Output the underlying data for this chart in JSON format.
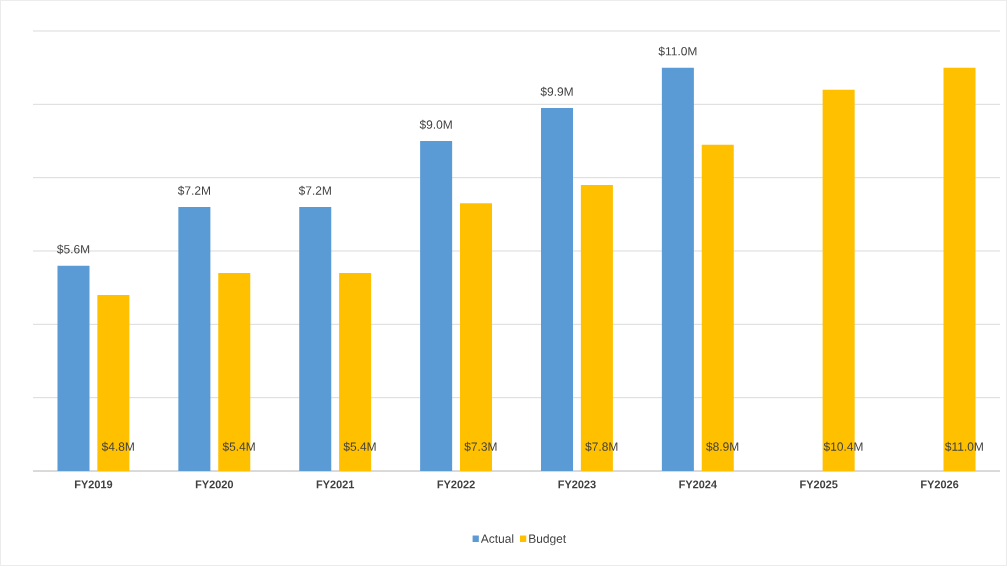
{
  "chart_data": {
    "type": "bar",
    "categories": [
      "FY2019",
      "FY2020",
      "FY2021",
      "FY2022",
      "FY2023",
      "FY2024",
      "FY2025",
      "FY2026"
    ],
    "series": [
      {
        "name": "Actual",
        "color": "#5b9bd5",
        "values": [
          5.6,
          7.2,
          7.2,
          9.0,
          9.9,
          11.0,
          null,
          null
        ],
        "value_labels": [
          "$5.6M",
          "$7.2M",
          "$7.2M",
          "$9.0M",
          "$9.9M",
          "$11.0M",
          null,
          null
        ]
      },
      {
        "name": "Budget",
        "color": "#ffc000",
        "values": [
          4.8,
          5.4,
          5.4,
          7.3,
          7.8,
          8.9,
          10.4,
          11.0
        ],
        "value_labels": [
          "$4.8M",
          "$5.4M",
          "$5.4M",
          "$7.3M",
          "$7.8M",
          "$8.9M",
          "$10.4M",
          "$11.0M"
        ]
      }
    ],
    "ylim": [
      0,
      12
    ],
    "yticks": [
      {
        "value": 0,
        "label": null
      },
      {
        "value": 2,
        "label": null
      },
      {
        "value": 4,
        "label": null
      },
      {
        "value": 6,
        "label": null
      },
      {
        "value": 8,
        "label": null
      },
      {
        "value": 10,
        "label": null
      },
      {
        "value": 12,
        "label": null
      }
    ],
    "tick_labels": "x",
    "grid": "y",
    "legend": "bottom"
  }
}
